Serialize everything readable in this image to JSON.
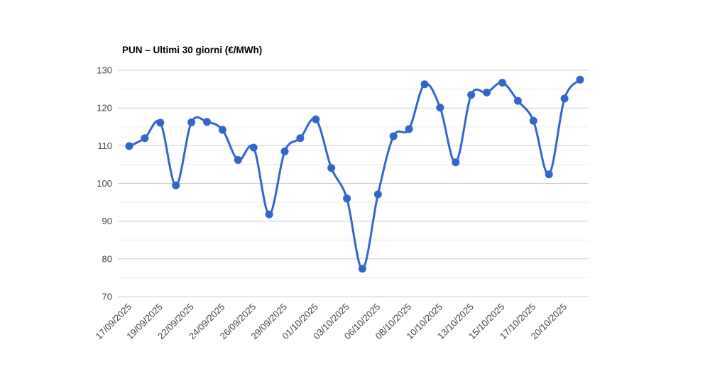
{
  "chart_data": {
    "type": "line",
    "title": "PUN – Ultimi 30 giorni (€/MWh)",
    "xlabel": "",
    "ylabel": "",
    "legend": "none",
    "grid": true,
    "ylim": [
      70,
      130
    ],
    "y_major_ticks": [
      70,
      80,
      90,
      100,
      110,
      120,
      130
    ],
    "y_minor_ticks": [
      75,
      85,
      95,
      105,
      115,
      125
    ],
    "x_tick_every": 2,
    "x_tick_labels": [
      "17/09/2025",
      "19/09/2025",
      "22/09/2025",
      "24/09/2025",
      "26/09/2025",
      "29/09/2025",
      "01/10/2025",
      "03/10/2025",
      "06/10/2025",
      "08/10/2025",
      "10/10/2025",
      "13/10/2025",
      "15/10/2025",
      "17/10/2025",
      "20/10/2025"
    ],
    "series": [
      {
        "name": "PUN",
        "values": [
          109.9,
          112.0,
          116.1,
          99.5,
          116.2,
          116.3,
          114.2,
          106.2,
          109.5,
          91.8,
          108.5,
          112.0,
          117.0,
          104.1,
          96.0,
          77.4,
          97.1,
          112.5,
          114.4,
          126.3,
          120.1,
          105.6,
          123.5,
          124.1,
          126.7,
          121.9,
          116.6,
          102.4,
          122.5,
          127.5
        ]
      }
    ],
    "colors": {
      "line": "#3366cc",
      "marker": "#3366cc",
      "major_grid": "#cccccc",
      "minor_grid": "#ebebeb",
      "axis_label": "#444444",
      "title": "#000000",
      "background": "#ffffff"
    }
  }
}
